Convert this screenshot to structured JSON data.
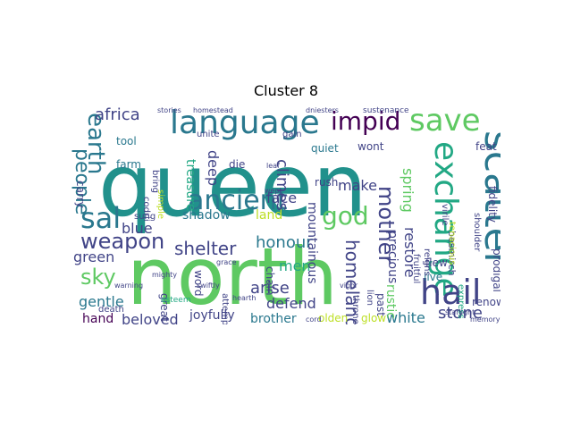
{
  "title": "Cluster 8",
  "colors": {
    "teal": "#21918c",
    "dark_teal": "#2a788e",
    "indigo": "#414487",
    "purple": "#440154",
    "green": "#5ec962",
    "light_green": "#7ad151",
    "yellow": "#bddf26",
    "blue": "#3b528b",
    "cyan": "#22a884"
  },
  "words": [
    {
      "text": "queen",
      "color": "teal"
    },
    {
      "text": "north",
      "color": "green"
    },
    {
      "text": "language",
      "color": "dark_teal"
    },
    {
      "text": "save",
      "color": "green"
    },
    {
      "text": "impid",
      "color": "purple"
    },
    {
      "text": "scatter",
      "color": "dark_teal"
    },
    {
      "text": "exchange",
      "color": "cyan"
    },
    {
      "text": "hail",
      "color": "indigo"
    },
    {
      "text": "ancient",
      "color": "dark_teal"
    },
    {
      "text": "god",
      "color": "green"
    },
    {
      "text": "sal",
      "color": "dark_teal"
    },
    {
      "text": "earth",
      "color": "dark_teal"
    },
    {
      "text": "people",
      "color": "dark_teal"
    },
    {
      "text": "weapon",
      "color": "indigo"
    },
    {
      "text": "sky",
      "color": "green"
    },
    {
      "text": "africa",
      "color": "indigo"
    },
    {
      "text": "mother",
      "color": "indigo"
    },
    {
      "text": "shelter",
      "color": "indigo"
    },
    {
      "text": "honour",
      "color": "dark_teal"
    },
    {
      "text": "homeland",
      "color": "indigo"
    },
    {
      "text": "stone",
      "color": "indigo"
    },
    {
      "text": "white",
      "color": "dark_teal"
    },
    {
      "text": "beloved",
      "color": "indigo"
    },
    {
      "text": "hand",
      "color": "purple"
    },
    {
      "text": "gentle",
      "color": "dark_teal"
    },
    {
      "text": "green",
      "color": "indigo"
    },
    {
      "text": "blue",
      "color": "indigo"
    },
    {
      "text": "brother",
      "color": "dark_teal"
    },
    {
      "text": "defend",
      "color": "indigo"
    },
    {
      "text": "arise",
      "color": "indigo"
    },
    {
      "text": "men",
      "color": "cyan"
    },
    {
      "text": "land",
      "color": "yellow"
    },
    {
      "text": "shadow",
      "color": "dark_teal"
    },
    {
      "text": "face",
      "color": "indigo"
    },
    {
      "text": "make",
      "color": "indigo"
    },
    {
      "text": "climes",
      "color": "indigo"
    },
    {
      "text": "deep",
      "color": "indigo"
    },
    {
      "text": "treasure",
      "color": "cyan"
    },
    {
      "text": "restore",
      "color": "indigo"
    },
    {
      "text": "spring",
      "color": "green"
    },
    {
      "text": "precious",
      "color": "indigo"
    },
    {
      "text": "mountainous",
      "color": "indigo"
    },
    {
      "text": "joyfully",
      "color": "indigo"
    },
    {
      "text": "olden",
      "color": "yellow"
    },
    {
      "text": "rustic",
      "color": "green"
    },
    {
      "text": "past",
      "color": "indigo"
    },
    {
      "text": "prodigal",
      "color": "indigo"
    },
    {
      "text": "fidelity",
      "color": "indigo"
    },
    {
      "text": "feat",
      "color": "indigo"
    },
    {
      "text": "renown",
      "color": "indigo"
    },
    {
      "text": "live",
      "color": "dark_teal"
    },
    {
      "text": "flew",
      "color": "indigo"
    },
    {
      "text": "tool",
      "color": "dark_teal"
    },
    {
      "text": "farm",
      "color": "dark_teal"
    },
    {
      "text": "die",
      "color": "indigo"
    },
    {
      "text": "quiet",
      "color": "dark_teal"
    },
    {
      "text": "wont",
      "color": "indigo"
    },
    {
      "text": "carry",
      "color": "indigo"
    },
    {
      "text": "word",
      "color": "indigo"
    },
    {
      "text": "chain",
      "color": "indigo"
    },
    {
      "text": "great",
      "color": "indigo"
    },
    {
      "text": "glow",
      "color": "yellow"
    },
    {
      "text": "fruitful",
      "color": "indigo"
    },
    {
      "text": "reigns",
      "color": "indigo"
    },
    {
      "text": "besmirch",
      "color": "indigo"
    },
    {
      "text": "lion",
      "color": "indigo"
    },
    {
      "text": "throne",
      "color": "indigo"
    },
    {
      "text": "gain",
      "color": "indigo"
    },
    {
      "text": "rush",
      "color": "indigo"
    },
    {
      "text": "unite",
      "color": "indigo"
    },
    {
      "text": "sung",
      "color": "indigo"
    },
    {
      "text": "codrii",
      "color": "indigo"
    },
    {
      "text": "simple",
      "color": "yellow"
    },
    {
      "text": "attempt",
      "color": "indigo"
    },
    {
      "text": "death",
      "color": "indigo"
    },
    {
      "text": "esteem",
      "color": "cyan"
    },
    {
      "text": "warning",
      "color": "indigo"
    },
    {
      "text": "express",
      "color": "cyan"
    },
    {
      "text": "shoulder",
      "color": "indigo"
    },
    {
      "text": "tenacious",
      "color": "yellow"
    },
    {
      "text": "virile",
      "color": "indigo"
    },
    {
      "text": "lovely",
      "color": "yellow"
    },
    {
      "text": "dniesters",
      "color": "indigo"
    },
    {
      "text": "sustenance",
      "color": "indigo"
    },
    {
      "text": "homestead",
      "color": "indigo"
    },
    {
      "text": "stories",
      "color": "indigo"
    },
    {
      "text": "swiftly",
      "color": "indigo"
    },
    {
      "text": "mighty",
      "color": "indigo"
    },
    {
      "text": "vigor",
      "color": "indigo"
    },
    {
      "text": "grace",
      "color": "indigo"
    },
    {
      "text": "cord",
      "color": "indigo"
    },
    {
      "text": "bring",
      "color": "indigo"
    },
    {
      "text": "leaf",
      "color": "indigo"
    },
    {
      "text": "wept",
      "color": "indigo"
    },
    {
      "text": "hearth",
      "color": "indigo"
    },
    {
      "text": "starlight",
      "color": "indigo"
    },
    {
      "text": "memory",
      "color": "indigo"
    }
  ]
}
